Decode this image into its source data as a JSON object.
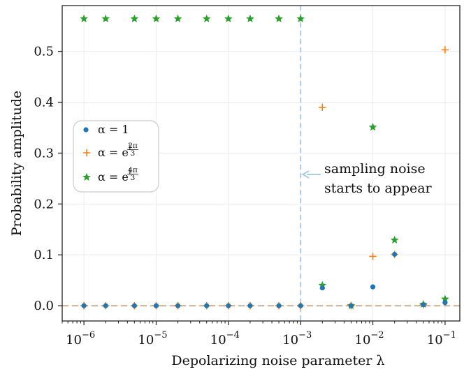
{
  "chart_data": {
    "type": "scatter",
    "title": "",
    "xlabel": "Depolarizing noise parameter λ",
    "ylabel": "Probability amplitude",
    "xscale": "log",
    "xlim": [
      5e-07,
      0.16
    ],
    "ylim": [
      -0.03,
      0.59
    ],
    "grid": true,
    "legend_position": "center-left",
    "x_ticks": [
      {
        "value": 1e-06,
        "base": "10",
        "exp": "−6"
      },
      {
        "value": 1e-05,
        "base": "10",
        "exp": "−5"
      },
      {
        "value": 0.0001,
        "base": "10",
        "exp": "−4"
      },
      {
        "value": 0.001,
        "base": "10",
        "exp": "−3"
      },
      {
        "value": 0.01,
        "base": "10",
        "exp": "−2"
      },
      {
        "value": 0.1,
        "base": "10",
        "exp": "−1"
      }
    ],
    "y_ticks": [
      {
        "value": 0.0,
        "label": "0.0"
      },
      {
        "value": 0.1,
        "label": "0.1"
      },
      {
        "value": 0.2,
        "label": "0.2"
      },
      {
        "value": 0.3,
        "label": "0.3"
      },
      {
        "value": 0.4,
        "label": "0.4"
      },
      {
        "value": 0.5,
        "label": "0.5"
      }
    ],
    "series": [
      {
        "name": "α = 1",
        "marker": "circle",
        "color": "#1f77b4",
        "x": [
          1e-06,
          2e-06,
          5e-06,
          1e-05,
          2e-05,
          5e-05,
          0.0001,
          0.0002,
          0.0005,
          0.001,
          0.002,
          0.005,
          0.01,
          0.02,
          0.05,
          0.1
        ],
        "y": [
          0,
          0,
          0,
          0,
          0,
          0,
          0,
          0,
          0,
          0,
          0.035,
          0.0,
          0.037,
          0.101,
          0.002,
          0.006
        ]
      },
      {
        "name": "α = e^{i2π/3}",
        "marker": "plus",
        "color": "#ff7f0e",
        "x": [
          1e-06,
          2e-06,
          5e-06,
          1e-05,
          2e-05,
          5e-05,
          0.0001,
          0.0002,
          0.0005,
          0.001,
          0.002,
          0.005,
          0.01,
          0.02,
          0.05,
          0.1
        ],
        "y": [
          0,
          0,
          0,
          0,
          0,
          0,
          0,
          0,
          0,
          0,
          0.39,
          0.0,
          0.097,
          0.101,
          0.002,
          0.503
        ]
      },
      {
        "name": "α = e^{i4π/3}",
        "marker": "star",
        "color": "#2ca02c",
        "x": [
          1e-06,
          2e-06,
          5e-06,
          1e-05,
          2e-05,
          5e-05,
          0.0001,
          0.0002,
          0.0005,
          0.001,
          0.002,
          0.005,
          0.01,
          0.02,
          0.05,
          0.1
        ],
        "y": [
          0.564,
          0.564,
          0.564,
          0.564,
          0.564,
          0.564,
          0.564,
          0.564,
          0.564,
          0.564,
          0.04,
          0.0,
          0.351,
          0.129,
          0.003,
          0.013
        ]
      }
    ],
    "legend": [
      {
        "marker": "circle",
        "color": "#1f77b4",
        "prefix": "α = ",
        "text": "1",
        "base": "",
        "num": "",
        "den": ""
      },
      {
        "marker": "plus",
        "color": "#ff7f0e",
        "prefix": "α = ",
        "text": "",
        "base": "e",
        "i": "i",
        "num": "2π",
        "den": "3"
      },
      {
        "marker": "star",
        "color": "#2ca02c",
        "prefix": "α = ",
        "text": "",
        "base": "e",
        "i": "i",
        "num": "4π",
        "den": "3"
      }
    ],
    "reference_lines": [
      {
        "orientation": "vertical",
        "value": 0.001,
        "style": "dashed",
        "color": "#aecbe4"
      },
      {
        "orientation": "horizontal",
        "value": 0.0,
        "style": "dashed",
        "color": "#d4b8a0"
      }
    ],
    "annotation": {
      "lines": [
        "sampling noise",
        "starts to appear"
      ],
      "arrow_to_x": 0.001,
      "y": 0.258,
      "color": "#aecbe4"
    }
  }
}
